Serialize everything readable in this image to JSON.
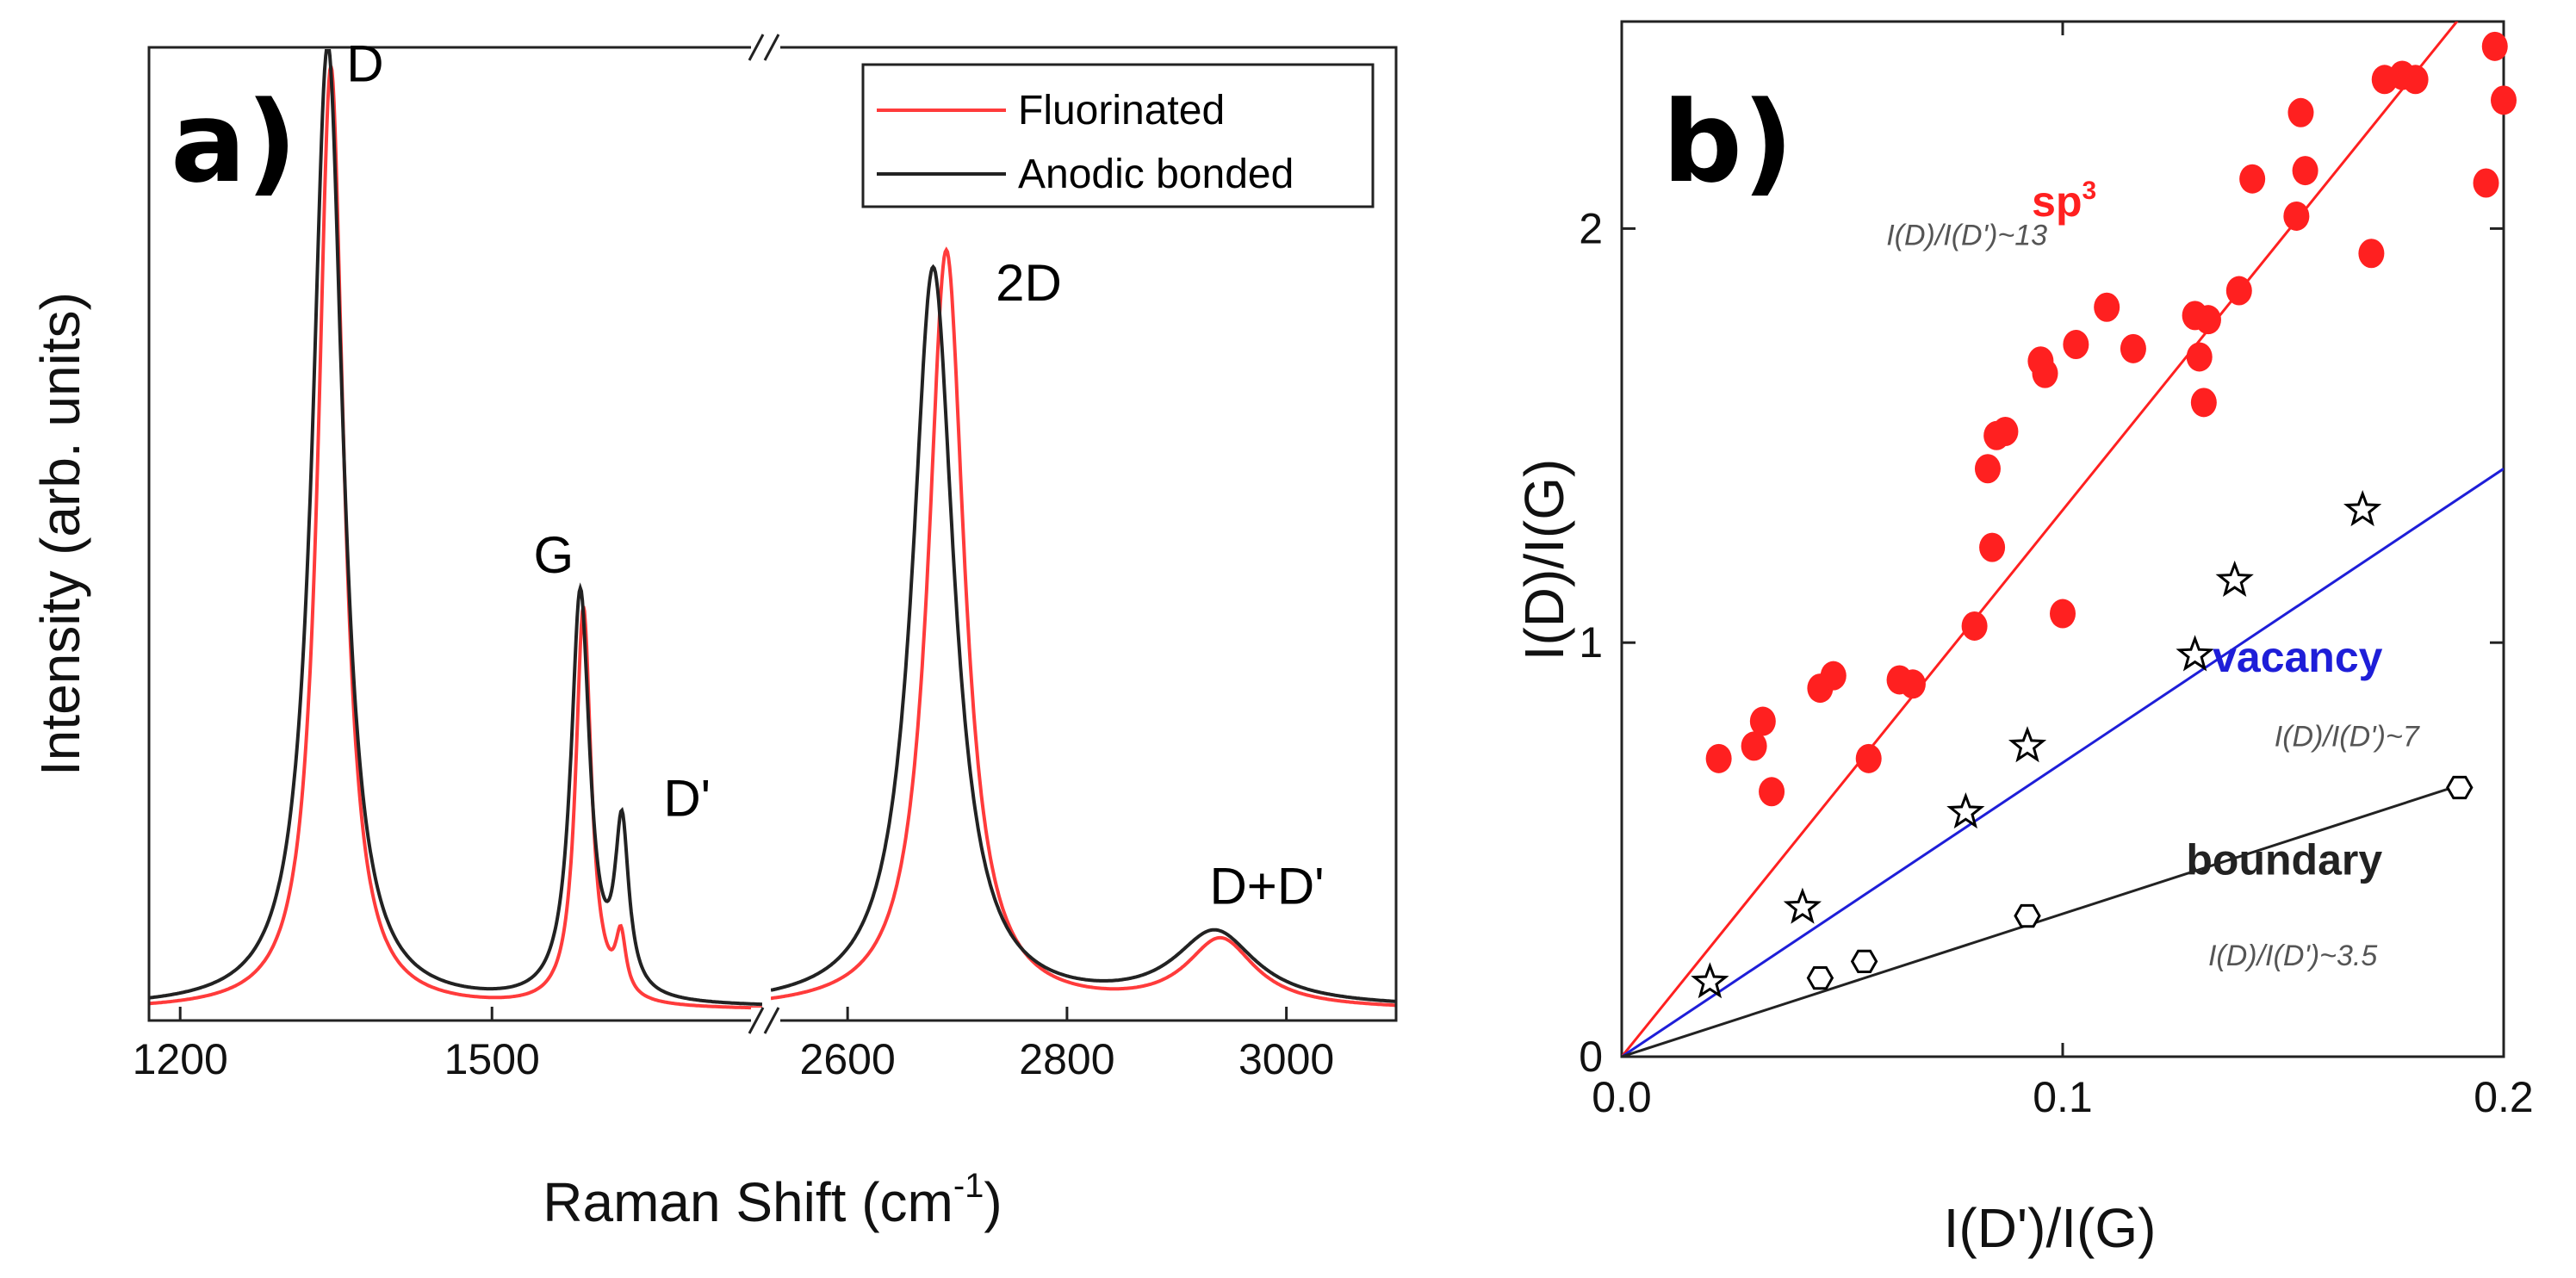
{
  "chart_data": [
    {
      "panel": "a)",
      "type": "line",
      "title": "",
      "xlabel": "Raman Shift (cm",
      "xlabel_sup": "-1",
      "xlabel_close": ")",
      "ylabel": "Intensity (arb. units)",
      "x_axis_break": true,
      "xlim_segments": [
        [
          1170,
          1760
        ],
        [
          2530,
          3100
        ]
      ],
      "xticks": [
        1200,
        1500,
        2600,
        2800,
        3000
      ],
      "ylim": [
        0,
        1.0
      ],
      "legend_position": "top-right",
      "legend": [
        "Fluorinated",
        "Anodic bonded"
      ],
      "series": [
        {
          "name": "Fluorinated",
          "color": "#ff3b3b",
          "baseline": 0.01,
          "peaks": [
            {
              "center": 1345,
              "height": 0.97,
              "width": 15
            },
            {
              "center": 1588,
              "height": 0.41,
              "width": 9
            },
            {
              "center": 1624,
              "height": 0.06,
              "width": 6
            },
            {
              "center": 2690,
              "height": 0.78,
              "width": 20
            },
            {
              "center": 2940,
              "height": 0.07,
              "width": 38
            }
          ]
        },
        {
          "name": "Anodic bonded",
          "color": "#222222",
          "baseline": 0.012,
          "peaks": [
            {
              "center": 1342,
              "height": 0.99,
              "width": 18
            },
            {
              "center": 1585,
              "height": 0.42,
              "width": 11
            },
            {
              "center": 1625,
              "height": 0.17,
              "width": 8
            },
            {
              "center": 2678,
              "height": 0.76,
              "width": 23
            },
            {
              "center": 2935,
              "height": 0.075,
              "width": 45
            }
          ]
        }
      ],
      "peak_labels": [
        {
          "text": "D",
          "x": 1360,
          "y": 0.965
        },
        {
          "text": "G",
          "x": 1540,
          "y": 0.46
        },
        {
          "text": "D'",
          "x": 1665,
          "y": 0.21
        },
        {
          "text": "2D",
          "x": 2735,
          "y": 0.74
        },
        {
          "text": "D+D'",
          "x": 2930,
          "y": 0.12
        }
      ]
    },
    {
      "panel": "b)",
      "type": "scatter",
      "title": "",
      "xlabel": "I(D')/I(G)",
      "ylabel": "I(D)/I(G)",
      "xlim": [
        0.0,
        0.2
      ],
      "ylim": [
        0,
        2.5
      ],
      "xticks": [
        0.0,
        0.1,
        0.2
      ],
      "xtick_labels": [
        "0.0",
        "0.1",
        "0.2"
      ],
      "yticks": [
        0,
        1,
        2
      ],
      "ytick_labels": [
        "0",
        "1",
        "2"
      ],
      "series": [
        {
          "name": "sp3",
          "label": "sp",
          "label_sup": "3",
          "ratio_label": "I(D)/I(D')~13",
          "color": "#ff2020",
          "marker": "filled-circle",
          "fit_slope": 13.2,
          "fit_xmax": 0.2,
          "label_pos": [
            0.093,
            2.03
          ],
          "ratio_pos": [
            0.06,
            1.96
          ],
          "points": [
            [
              0.022,
              0.72
            ],
            [
              0.03,
              0.75
            ],
            [
              0.032,
              0.81
            ],
            [
              0.034,
              0.64
            ],
            [
              0.045,
              0.89
            ],
            [
              0.048,
              0.92
            ],
            [
              0.056,
              0.72
            ],
            [
              0.063,
              0.91
            ],
            [
              0.066,
              0.9
            ],
            [
              0.08,
              1.04
            ],
            [
              0.083,
              1.42
            ],
            [
              0.084,
              1.23
            ],
            [
              0.085,
              1.5
            ],
            [
              0.087,
              1.51
            ],
            [
              0.095,
              1.68
            ],
            [
              0.096,
              1.65
            ],
            [
              0.1,
              1.07
            ],
            [
              0.103,
              1.72
            ],
            [
              0.11,
              1.81
            ],
            [
              0.116,
              1.71
            ],
            [
              0.13,
              1.79
            ],
            [
              0.131,
              1.69
            ],
            [
              0.132,
              1.58
            ],
            [
              0.133,
              1.78
            ],
            [
              0.14,
              1.85
            ],
            [
              0.143,
              2.12
            ],
            [
              0.153,
              2.03
            ],
            [
              0.154,
              2.28
            ],
            [
              0.155,
              2.14
            ],
            [
              0.17,
              1.94
            ],
            [
              0.173,
              2.36
            ],
            [
              0.177,
              2.37
            ],
            [
              0.18,
              2.36
            ],
            [
              0.196,
              2.11
            ],
            [
              0.198,
              2.44
            ],
            [
              0.2,
              2.31
            ]
          ]
        },
        {
          "name": "vacancy",
          "label": "vacancy",
          "ratio_label": "I(D)/I(D')~7",
          "color": "#1e1ed8",
          "marker": "open-star",
          "fit_slope": 7.1,
          "fit_xmax": 0.2,
          "label_pos": [
            0.134,
            0.93
          ],
          "ratio_pos": [
            0.148,
            0.75
          ],
          "points": [
            [
              0.02,
              0.18
            ],
            [
              0.041,
              0.36
            ],
            [
              0.078,
              0.59
            ],
            [
              0.092,
              0.75
            ],
            [
              0.13,
              0.97
            ],
            [
              0.139,
              1.15
            ],
            [
              0.168,
              1.32
            ]
          ]
        },
        {
          "name": "boundary",
          "label": "boundary",
          "ratio_label": "I(D)/I(D')~3.5",
          "color": "#222222",
          "marker": "open-hexagon",
          "fit_slope": 3.45,
          "fit_xmax": 0.19,
          "label_pos": [
            0.128,
            0.44
          ],
          "ratio_pos": [
            0.133,
            0.22
          ],
          "points": [
            [
              0.045,
              0.19
            ],
            [
              0.055,
              0.23
            ],
            [
              0.092,
              0.34
            ],
            [
              0.19,
              0.65
            ]
          ]
        }
      ]
    }
  ]
}
